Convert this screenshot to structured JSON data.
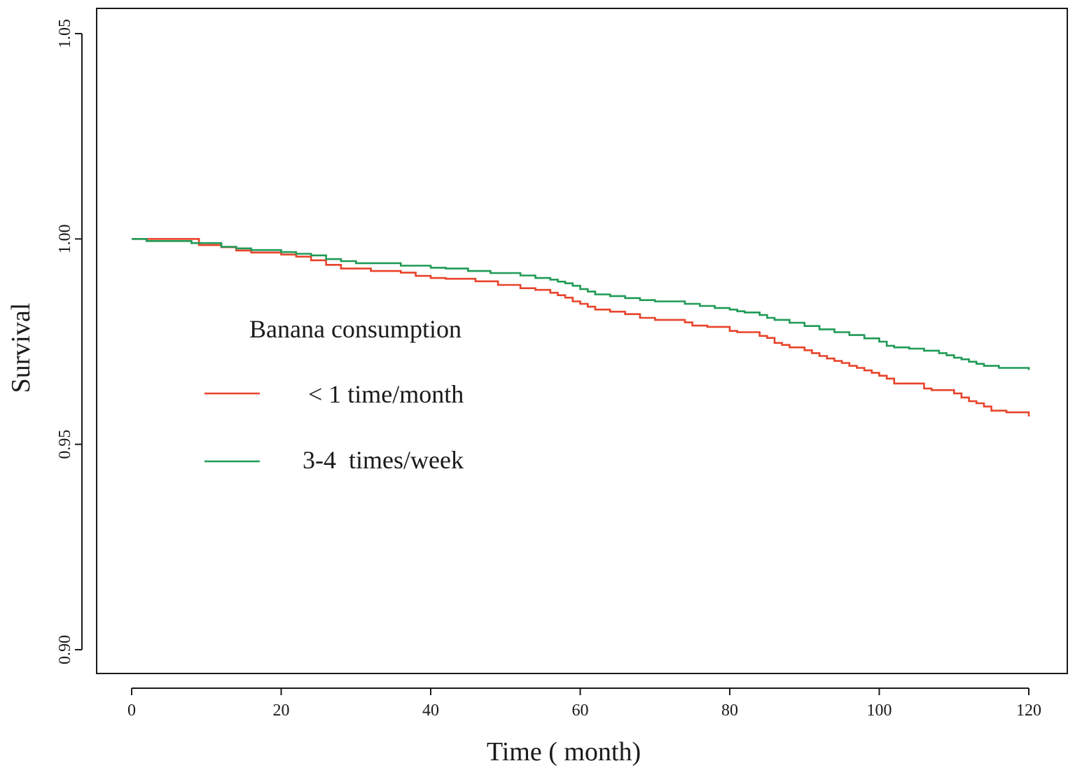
{
  "chart_data": {
    "type": "line",
    "subtype": "kaplan-meier step",
    "title": "",
    "xlabel": "Time ( month)",
    "ylabel": "Survival",
    "xlim": [
      0,
      120
    ],
    "ylim": [
      0.9,
      1.05
    ],
    "x_ticks": [
      {
        "value": 0,
        "label": "0"
      },
      {
        "value": 20,
        "label": "20"
      },
      {
        "value": 40,
        "label": "40"
      },
      {
        "value": 60,
        "label": "60"
      },
      {
        "value": 80,
        "label": "80"
      },
      {
        "value": 100,
        "label": "100"
      },
      {
        "value": 120,
        "label": "120"
      }
    ],
    "y_ticks": [
      {
        "value": 0.9,
        "label": "0.90"
      },
      {
        "value": 0.95,
        "label": "0.95"
      },
      {
        "value": 1.0,
        "label": "1.00"
      },
      {
        "value": 1.05,
        "label": "1.05"
      }
    ],
    "grid": false,
    "legend": {
      "title": "Banana consumption",
      "placement": "center-left"
    },
    "series": [
      {
        "name": "< 1 time/month",
        "color": "#e8432a",
        "x": [
          0,
          9,
          12,
          14,
          16,
          20,
          22,
          24,
          26,
          28,
          32,
          36,
          38,
          40,
          42,
          46,
          49,
          52,
          54,
          56,
          57,
          58,
          59,
          60,
          61,
          62,
          64,
          66,
          68,
          70,
          74,
          75,
          77,
          80,
          81,
          84,
          85,
          86,
          87,
          88,
          90,
          91,
          92,
          93,
          94,
          95,
          96,
          97,
          98,
          99,
          100,
          101,
          102,
          106,
          107,
          110,
          111,
          112,
          113,
          114,
          115,
          117,
          120
        ],
        "y": [
          1.0,
          0.9985,
          0.998,
          0.9972,
          0.9967,
          0.9962,
          0.9957,
          0.9948,
          0.9937,
          0.9928,
          0.9922,
          0.9918,
          0.991,
          0.9905,
          0.9903,
          0.9897,
          0.9888,
          0.988,
          0.9876,
          0.9869,
          0.9863,
          0.9857,
          0.9848,
          0.9842,
          0.9835,
          0.9828,
          0.9823,
          0.9817,
          0.9808,
          0.9803,
          0.9797,
          0.9789,
          0.9786,
          0.9776,
          0.9773,
          0.9764,
          0.9759,
          0.9747,
          0.9742,
          0.9736,
          0.9729,
          0.9722,
          0.9715,
          0.9709,
          0.9703,
          0.9698,
          0.9691,
          0.9686,
          0.968,
          0.9674,
          0.9667,
          0.966,
          0.9648,
          0.9636,
          0.9632,
          0.9624,
          0.9614,
          0.9605,
          0.96,
          0.9592,
          0.9582,
          0.9578,
          0.9568
        ]
      },
      {
        "name": "3-4  times/week",
        "color": "#1f9a55",
        "x": [
          0,
          2,
          8,
          12,
          14,
          16,
          20,
          22,
          24,
          26,
          28,
          30,
          36,
          40,
          42,
          45,
          48,
          52,
          54,
          56,
          57,
          58,
          59,
          60,
          61,
          62,
          64,
          66,
          68,
          70,
          74,
          76,
          78,
          80,
          81,
          82,
          84,
          85,
          86,
          88,
          90,
          92,
          94,
          96,
          98,
          100,
          101,
          102,
          104,
          106,
          108,
          109,
          110,
          111,
          112,
          113,
          114,
          116,
          120
        ],
        "y": [
          1.0,
          0.9995,
          0.999,
          0.9981,
          0.9977,
          0.9973,
          0.9968,
          0.9964,
          0.996,
          0.9951,
          0.9946,
          0.9941,
          0.9935,
          0.993,
          0.9928,
          0.9922,
          0.9917,
          0.9911,
          0.9905,
          0.9901,
          0.9896,
          0.9892,
          0.9886,
          0.9878,
          0.9872,
          0.9865,
          0.9861,
          0.9856,
          0.9851,
          0.9848,
          0.9842,
          0.9837,
          0.9832,
          0.9828,
          0.9824,
          0.9821,
          0.9815,
          0.9808,
          0.9803,
          0.9796,
          0.9788,
          0.978,
          0.9773,
          0.9766,
          0.9758,
          0.975,
          0.974,
          0.9736,
          0.9733,
          0.9728,
          0.9722,
          0.9717,
          0.9711,
          0.9707,
          0.9701,
          0.9696,
          0.9691,
          0.9686,
          0.9681
        ]
      }
    ]
  }
}
